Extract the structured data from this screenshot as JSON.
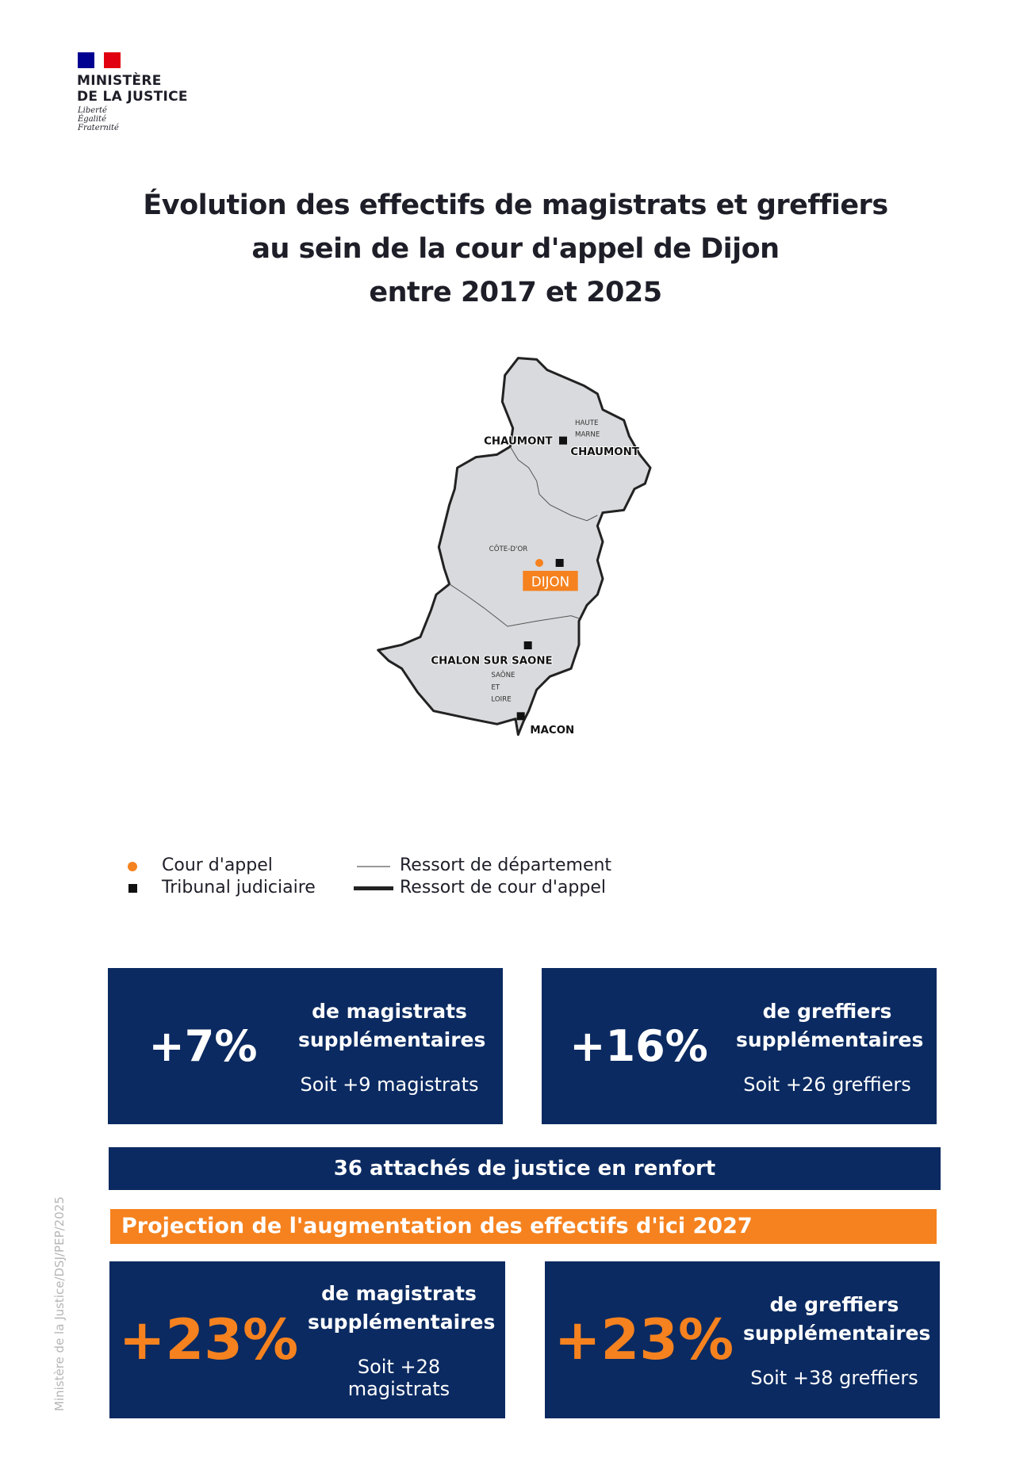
{
  "logo": {
    "line1": "MINISTÈRE",
    "line2": "DE LA JUSTICE",
    "devise": [
      "Liberté",
      "Égalité",
      "Fraternité"
    ]
  },
  "title": [
    "Évolution des effectifs de magistrats et greffiers",
    "au sein de la cour d'appel de Dijon",
    "entre 2017 et 2025"
  ],
  "map": {
    "departments": {
      "haute_marne": [
        "HAUTE",
        "MARNE"
      ],
      "cote_dor": "CÔTE-D'OR",
      "saone_loire": [
        "SAÔNE",
        "ET",
        "LOIRE"
      ]
    },
    "cities": {
      "chaumont_tj": "CHAUMONT",
      "chaumont_dept": "CHAUMONT",
      "dijon": "DIJON",
      "chalon": "CHALON SUR SAONE",
      "macon": "MACON"
    },
    "colors": {
      "fill": "#d9dadd",
      "border": "#222222",
      "accent": "#f5821f"
    }
  },
  "legend": {
    "cour": "Cour d'appel",
    "tribunal": "Tribunal judiciaire",
    "dept": "Ressort de département",
    "ressort": "Ressort de cour d'appel"
  },
  "stats": [
    {
      "value": "+7%",
      "label1": "de magistrats",
      "label2": "supplémentaires",
      "sub": "Soit +9 magistrats"
    },
    {
      "value": "+16%",
      "label1": "de greffiers",
      "label2": "supplémentaires",
      "sub": "Soit +26 greffiers"
    }
  ],
  "banner": "36 attachés de justice en renfort",
  "projection_title": "Projection de l'augmentation des effectifs d'ici 2027",
  "projections": [
    {
      "value": "+23%",
      "label1": "de magistrats",
      "label2": "supplémentaires",
      "sub": "Soit +28 magistrats"
    },
    {
      "value": "+23%",
      "label1": "de greffiers",
      "label2": "supplémentaires",
      "sub": "Soit +38 greffiers"
    }
  ],
  "side_credit": "Ministère de la Justice/DSJ/PEP/2025",
  "colors": {
    "navy": "#0b2a61",
    "orange": "#f5821f"
  }
}
